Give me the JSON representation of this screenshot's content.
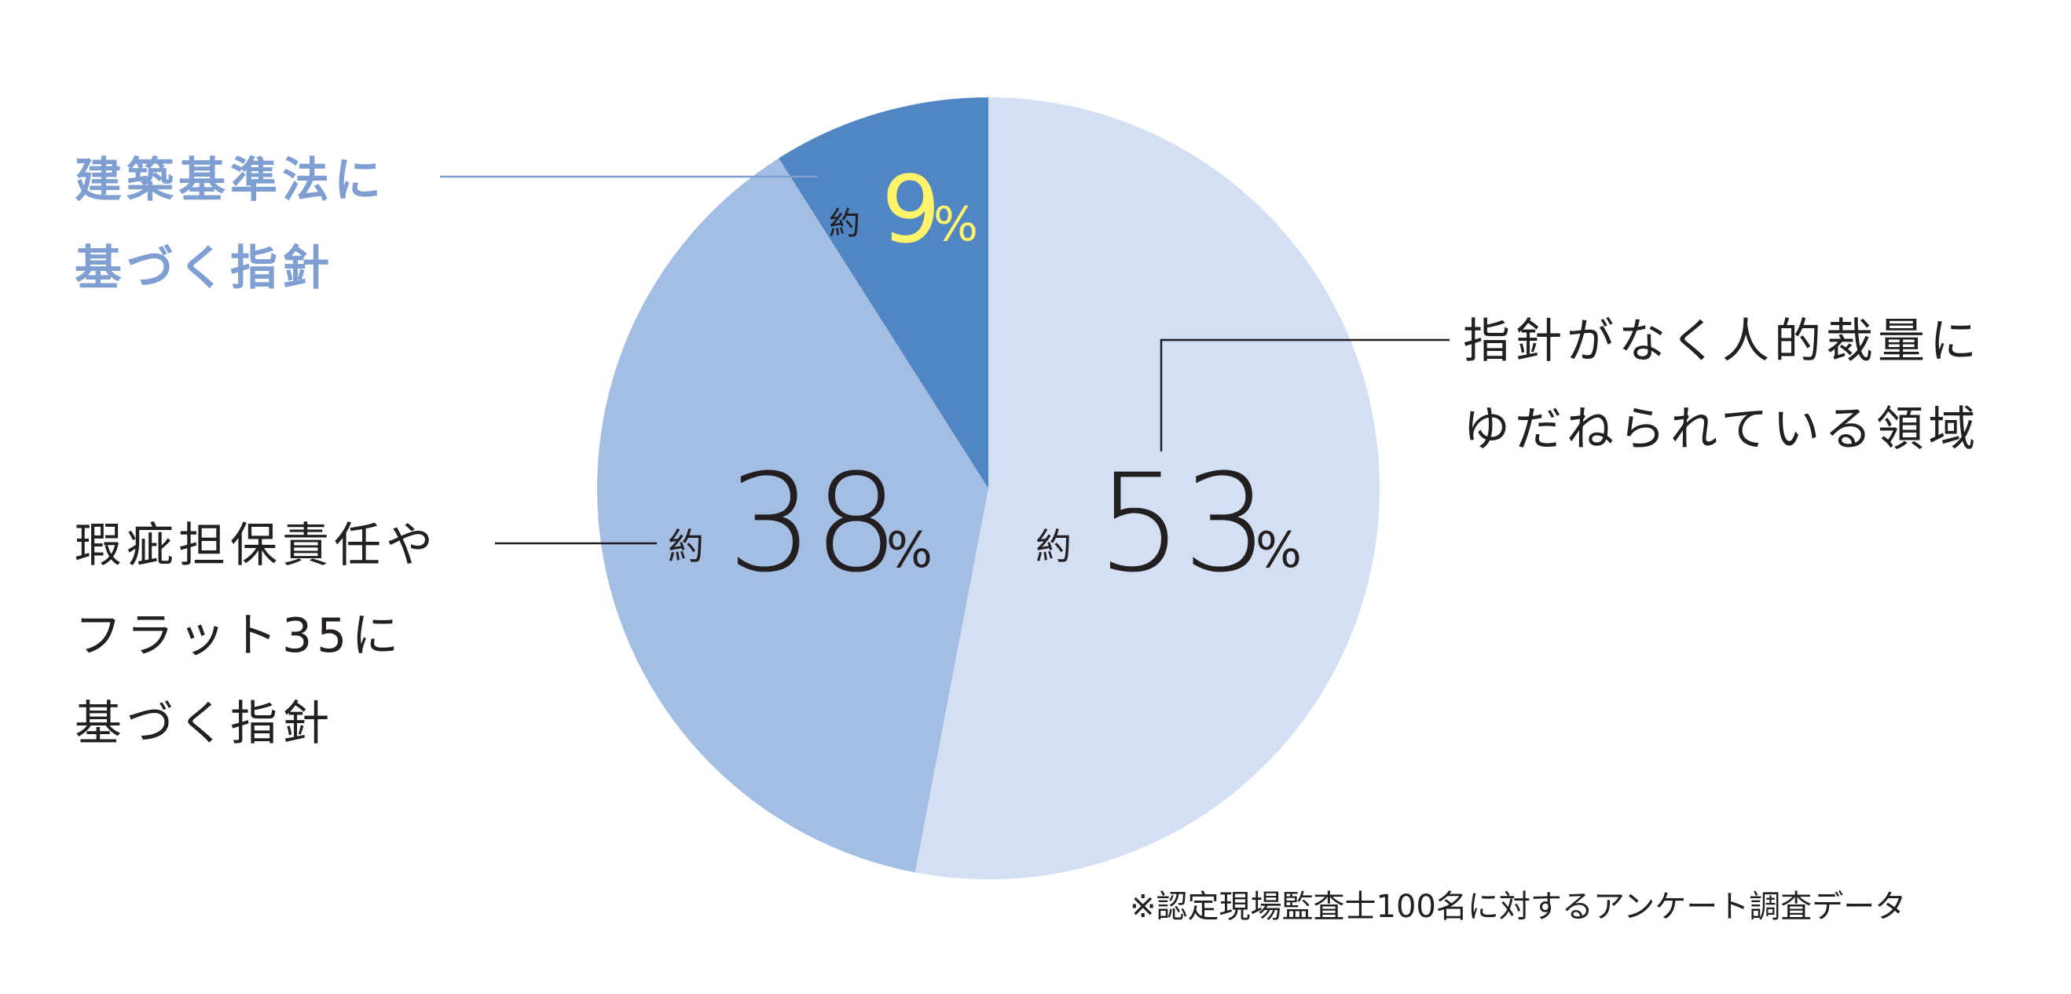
{
  "chart_data": {
    "type": "pie",
    "slices": [
      {
        "label_lines": [
          "指針がなく人的裁量に",
          "ゆだねられている領域"
        ],
        "value": 53,
        "prefix": "約",
        "unit": "%",
        "color": "#d3dff2"
      },
      {
        "label_lines": [
          "瑕疵担保責任や",
          "フラット35に",
          "基づく指針"
        ],
        "value": 38,
        "prefix": "約",
        "unit": "%",
        "color": "#a4bde2"
      },
      {
        "label_lines": [
          "建築基準法に",
          "基づく指針"
        ],
        "value": 9,
        "prefix": "約",
        "unit": "%",
        "color": "#5186c5",
        "value_color": "#fff36a",
        "label_color": "#7f9fd2"
      }
    ],
    "start_angle": "12 o'clock",
    "direction": "clockwise",
    "note": "※認定現場監査士100名に対するアンケート調査データ"
  }
}
